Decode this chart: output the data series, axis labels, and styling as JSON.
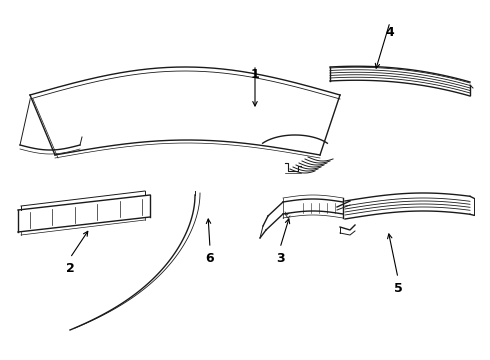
{
  "background_color": "#ffffff",
  "line_color": "#1a1a1a",
  "label_color": "#000000",
  "figsize": [
    4.9,
    3.6
  ],
  "dpi": 100
}
